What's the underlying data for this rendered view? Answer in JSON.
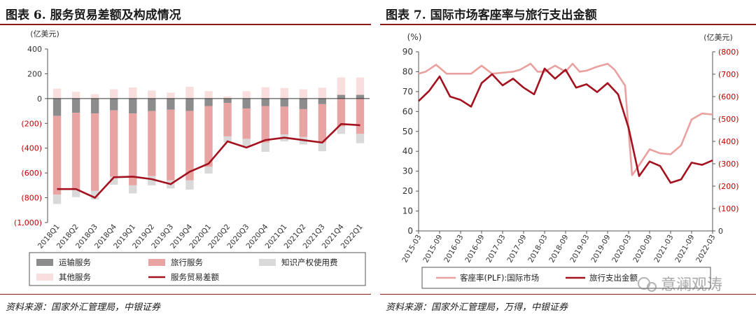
{
  "left_panel": {
    "title": "图表 6. 服务贸易差额及构成情况",
    "source": "资料来源：国家外汇管理局，中银证券"
  },
  "right_panel": {
    "title": "图表 7. 国际市场客座率与旅行支出金额",
    "source": "资料来源：国家外汇管理局，万得，中银证券"
  },
  "watermark": "意澜观涛",
  "colors": {
    "dark_red": "#a3121e",
    "light_red": "#e8a3a3",
    "pale_pink": "#f9dede",
    "dark_gray": "#8c8c8c",
    "light_gray": "#d9d9d9",
    "pink_line": "#eba0a0",
    "axis_red": "#c00000"
  },
  "chart_data": [
    {
      "type": "bar",
      "stacked": true,
      "unit_label": "(亿美元)",
      "ylim": [
        -1000,
        400
      ],
      "yticks": [
        -1000,
        -800,
        -600,
        -400,
        -200,
        0,
        200,
        400
      ],
      "ytick_labels": [
        "(1,000)",
        "(800)",
        "(600)",
        "(400)",
        "(200)",
        "0",
        "200",
        "400"
      ],
      "grid": false,
      "legend_position": "bottom",
      "categories": [
        "2018Q1",
        "2018Q2",
        "2018Q3",
        "2018Q4",
        "2019Q1",
        "2019Q2",
        "2019Q3",
        "2019Q4",
        "2020Q1",
        "2020Q2",
        "2020Q3",
        "2020Q4",
        "2021Q1",
        "2021Q2",
        "2021Q3",
        "2021Q4",
        "2022Q1"
      ],
      "series": [
        {
          "name": "运输服务",
          "kind": "bar",
          "color": "#8c8c8c",
          "values": [
            -140,
            -115,
            -120,
            -95,
            -120,
            -100,
            -90,
            -100,
            -60,
            -35,
            -80,
            -60,
            -65,
            -85,
            -45,
            30,
            30
          ]
        },
        {
          "name": "旅行服务",
          "kind": "bar",
          "color": "#e8a3a3",
          "values": [
            -635,
            -620,
            -625,
            -535,
            -580,
            -525,
            -570,
            -560,
            -490,
            -270,
            -245,
            -295,
            -225,
            -225,
            -310,
            -225,
            -285
          ]
        },
        {
          "name": "知识产权使用费",
          "kind": "bar",
          "color": "#d9d9d9",
          "values": [
            -75,
            -60,
            -70,
            -65,
            -65,
            -75,
            -65,
            -75,
            -55,
            -50,
            -60,
            -75,
            -55,
            -60,
            -70,
            -60,
            -75
          ]
        },
        {
          "name": "其他服务",
          "kind": "bar",
          "color": "#f9dede",
          "values": [
            80,
            55,
            35,
            75,
            90,
            65,
            48,
            95,
            60,
            18,
            60,
            92,
            85,
            75,
            88,
            140,
            140
          ]
        },
        {
          "name": "服务贸易差额",
          "kind": "line",
          "color": "#a3121e",
          "values": [
            -730,
            -730,
            -800,
            -635,
            -630,
            -650,
            -690,
            -590,
            -525,
            -345,
            -395,
            -335,
            -315,
            -335,
            -355,
            -205,
            -215
          ]
        }
      ]
    },
    {
      "type": "line",
      "x": [
        "2015-03",
        "2015-09",
        "2016-03",
        "2016-09",
        "2017-03",
        "2017-09",
        "2018-03",
        "2018-09",
        "2019-03",
        "2019-09",
        "2020-03",
        "2020-09",
        "2021-03",
        "2021-09",
        "2022-03"
      ],
      "y_left": {
        "unit_label": "(%)",
        "ylim": [
          0,
          90
        ],
        "ticks": [
          0,
          10,
          20,
          30,
          40,
          50,
          60,
          70,
          80,
          90
        ],
        "tick_labels": [
          "0",
          "10",
          "20",
          "30",
          "40",
          "50",
          "60",
          "70",
          "80",
          "90"
        ]
      },
      "y_right": {
        "unit_label": "(亿美元)",
        "ylim": [
          0,
          800
        ],
        "ticks": [
          0,
          100,
          200,
          300,
          400,
          500,
          600,
          700,
          800
        ],
        "tick_labels": [
          "0",
          "(100)",
          "(200)",
          "(300)",
          "(400)",
          "(500)",
          "(600)",
          "(700)",
          "(800)"
        ]
      },
      "grid": false,
      "legend_position": "bottom",
      "series": [
        {
          "name": "客座率(PLF):国际市场",
          "axis": "left",
          "color": "#eba0a0",
          "points": [
            [
              "2015-03",
              79
            ],
            [
              "2015-05",
              80
            ],
            [
              "2015-08",
              83.5
            ],
            [
              "2015-11",
              79
            ],
            [
              "2016-03",
              79
            ],
            [
              "2016-06",
              79
            ],
            [
              "2016-09",
              83
            ],
            [
              "2016-12",
              79
            ],
            [
              "2017-03",
              79.5
            ],
            [
              "2017-06",
              80
            ],
            [
              "2017-08",
              81
            ],
            [
              "2017-11",
              84
            ],
            [
              "2018-01",
              80
            ],
            [
              "2018-03",
              80
            ],
            [
              "2018-06",
              83
            ],
            [
              "2018-09",
              80
            ],
            [
              "2018-11",
              84
            ],
            [
              "2019-01",
              80
            ],
            [
              "2019-03",
              80.5
            ],
            [
              "2019-06",
              82.5
            ],
            [
              "2019-09",
              84
            ],
            [
              "2019-11",
              81
            ],
            [
              "2020-02",
              73
            ],
            [
              "2020-04",
              28
            ],
            [
              "2020-06",
              33
            ],
            [
              "2020-09",
              41
            ],
            [
              "2020-12",
              39
            ],
            [
              "2021-03",
              38.5
            ],
            [
              "2021-06",
              43
            ],
            [
              "2021-09",
              56
            ],
            [
              "2021-12",
              59
            ],
            [
              "2022-03",
              58.5
            ]
          ]
        },
        {
          "name": "旅行支出金额",
          "axis": "right",
          "color": "#a3121e",
          "points": [
            [
              "2015-03",
              580
            ],
            [
              "2015-06",
              625
            ],
            [
              "2015-09",
              690
            ],
            [
              "2015-12",
              600
            ],
            [
              "2016-03",
              585
            ],
            [
              "2016-06",
              555
            ],
            [
              "2016-09",
              660
            ],
            [
              "2016-12",
              700
            ],
            [
              "2017-03",
              650
            ],
            [
              "2017-06",
              680
            ],
            [
              "2017-09",
              640
            ],
            [
              "2017-12",
              610
            ],
            [
              "2018-03",
              725
            ],
            [
              "2018-06",
              680
            ],
            [
              "2018-09",
              720
            ],
            [
              "2018-12",
              640
            ],
            [
              "2019-03",
              655
            ],
            [
              "2019-06",
              620
            ],
            [
              "2019-09",
              660
            ],
            [
              "2019-12",
              610
            ],
            [
              "2020-03",
              460
            ],
            [
              "2020-06",
              245
            ],
            [
              "2020-09",
              310
            ],
            [
              "2020-12",
              290
            ],
            [
              "2021-03",
              215
            ],
            [
              "2021-06",
              230
            ],
            [
              "2021-09",
              305
            ],
            [
              "2021-12",
              295
            ],
            [
              "2022-03",
              315
            ]
          ]
        }
      ]
    }
  ]
}
